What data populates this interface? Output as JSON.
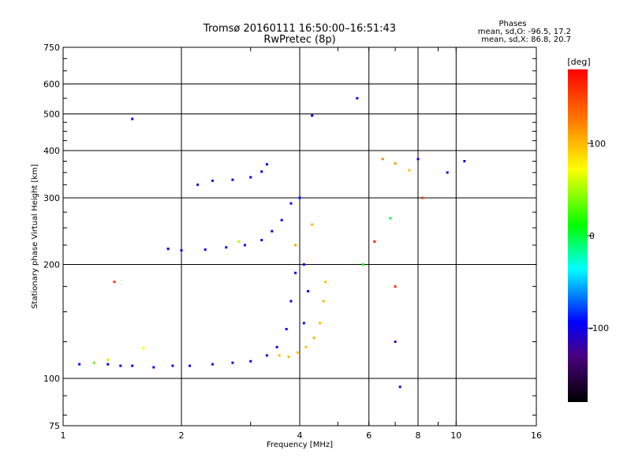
{
  "header": {
    "title_line1": "Tromsø 20160111 16:50:00–16:51:43",
    "title_line2": "RwPretec (8p)"
  },
  "stats": {
    "heading": "Phases",
    "line_o": "mean, sd,O: -96.5, 17.2",
    "line_x": "mean, sd,X: 86.8, 20.7"
  },
  "colorbar": {
    "unit_label": "[deg]",
    "ticks": [
      "100",
      "0",
      "-100"
    ],
    "tick_values": [
      100,
      0,
      -100
    ],
    "range": [
      -180,
      180
    ],
    "colormap": [
      "#000000",
      "#4b0082",
      "#0000ff",
      "#00ffff",
      "#00ff00",
      "#ffff00",
      "#ff8000",
      "#ff0000"
    ]
  },
  "chart_data": {
    "type": "scatter",
    "title": "Tromsø 20160111 16:50:00–16:51:43",
    "subtitle": "RwPretec (8p)",
    "xlabel": "Frequency [MHz]",
    "ylabel": "Stationary phase Virtual Height [km]",
    "x_scale": "log",
    "y_scale": "log",
    "xlim": [
      1,
      16
    ],
    "ylim": [
      75,
      750
    ],
    "x_ticks": [
      1,
      2,
      4,
      6,
      8,
      10,
      16
    ],
    "x_tick_labels": [
      "1",
      "2",
      "4",
      "6",
      "8",
      "10",
      "16"
    ],
    "y_ticks": [
      75,
      100,
      200,
      300,
      400,
      500,
      600,
      750
    ],
    "y_tick_labels": [
      "75",
      "100",
      "200",
      "300",
      "400",
      "500",
      "600",
      "750"
    ],
    "grid": true,
    "color_dimension": "phase [deg]",
    "series": [
      {
        "values": [
          [
            1.1,
            109,
            -95
          ],
          [
            1.2,
            110,
            -100
          ],
          [
            1.3,
            109,
            -98
          ],
          [
            1.4,
            108,
            -95
          ],
          [
            1.5,
            108,
            -100
          ],
          [
            1.7,
            107,
            -98
          ],
          [
            1.9,
            108,
            -100
          ],
          [
            2.1,
            108,
            -96
          ],
          [
            2.4,
            109,
            -100
          ],
          [
            2.7,
            110,
            -98
          ],
          [
            3.0,
            111,
            -95
          ],
          [
            3.3,
            115,
            -100
          ],
          [
            3.5,
            121,
            -98
          ],
          [
            3.7,
            135,
            -95
          ],
          [
            3.8,
            160,
            -100
          ],
          [
            3.9,
            190,
            -98
          ],
          [
            4.0,
            300,
            -100
          ],
          [
            4.1,
            200,
            -95
          ],
          [
            4.2,
            170,
            -98
          ],
          [
            4.1,
            140,
            -100
          ]
        ]
      },
      {
        "values": [
          [
            1.85,
            220,
            -100
          ],
          [
            2.0,
            218,
            -98
          ],
          [
            2.3,
            219,
            -95
          ],
          [
            2.6,
            222,
            -100
          ],
          [
            2.9,
            225,
            -98
          ],
          [
            3.2,
            232,
            -95
          ],
          [
            3.4,
            245,
            -100
          ],
          [
            3.6,
            262,
            -98
          ],
          [
            3.8,
            290,
            -95
          ]
        ]
      },
      {
        "values": [
          [
            2.4,
            333,
            -100
          ],
          [
            2.7,
            335,
            -98
          ],
          [
            3.0,
            340,
            -95
          ],
          [
            3.2,
            352,
            -100
          ],
          [
            3.3,
            368,
            -98
          ]
        ]
      },
      {
        "values": [
          [
            3.55,
            115,
            95
          ],
          [
            3.75,
            114,
            100
          ],
          [
            3.95,
            117,
            90
          ],
          [
            4.15,
            121,
            95
          ],
          [
            4.35,
            128,
            100
          ],
          [
            4.5,
            140,
            95
          ],
          [
            4.6,
            160,
            100
          ],
          [
            4.65,
            180,
            95
          ],
          [
            3.9,
            225,
            105
          ],
          [
            4.3,
            255,
            100
          ]
        ]
      },
      {
        "values": [
          [
            1.2,
            110,
            40
          ],
          [
            1.3,
            112,
            55
          ],
          [
            1.6,
            120,
            70
          ],
          [
            2.8,
            230,
            50
          ],
          [
            6.5,
            380,
            120
          ],
          [
            7.0,
            370,
            110
          ],
          [
            7.6,
            355,
            95
          ],
          [
            6.8,
            265,
            -5
          ],
          [
            5.8,
            200,
            15
          ]
        ]
      },
      {
        "values": [
          [
            1.5,
            485,
            -100
          ],
          [
            2.2,
            325,
            -110
          ],
          [
            4.3,
            495,
            -100
          ],
          [
            5.6,
            550,
            -95
          ],
          [
            8.0,
            380,
            -105
          ],
          [
            9.5,
            350,
            -100
          ],
          [
            10.5,
            375,
            -105
          ],
          [
            7.2,
            95,
            -100
          ],
          [
            7.0,
            125,
            -120
          ]
        ]
      },
      {
        "values": [
          [
            1.35,
            180,
            150
          ],
          [
            7.0,
            175,
            160
          ],
          [
            8.2,
            300,
            155
          ],
          [
            6.2,
            230,
            165
          ]
        ]
      }
    ]
  }
}
